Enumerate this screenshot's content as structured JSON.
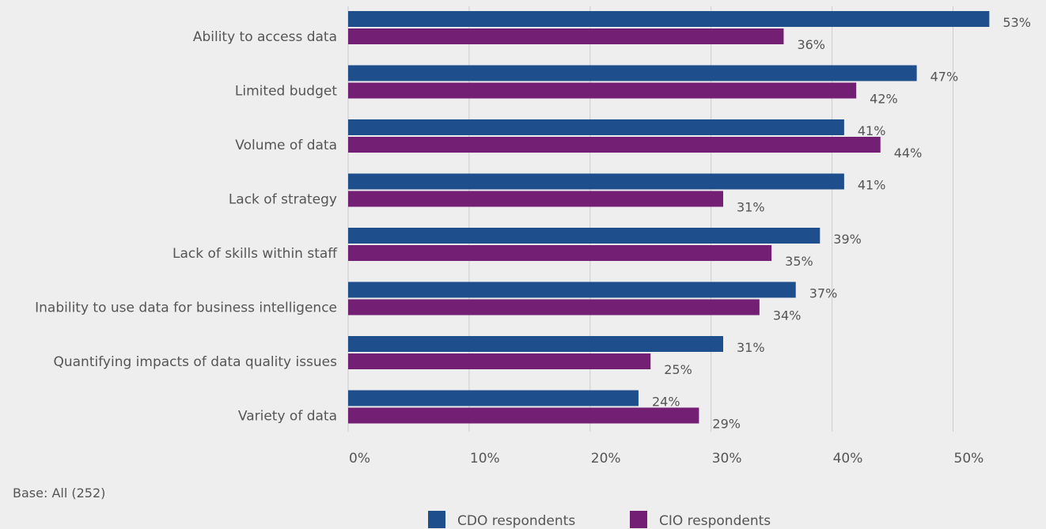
{
  "chart_data": {
    "type": "bar",
    "orientation": "horizontal",
    "categories": [
      "Ability to access data",
      "Limited budget",
      "Volume of data",
      "Lack of strategy",
      "Lack of skills within staff",
      "Inability to use data for business intelligence",
      "Quantifying impacts of data quality issues",
      "Variety of data"
    ],
    "series": [
      {
        "name": "CDO respondents",
        "color": "#1f4e8c",
        "values": [
          53,
          47,
          41,
          41,
          39,
          37,
          31,
          24
        ]
      },
      {
        "name": "CIO respondents",
        "color": "#731f73",
        "values": [
          36,
          42,
          44,
          31,
          35,
          34,
          25,
          29
        ]
      }
    ],
    "xlim": [
      0,
      55
    ],
    "x_ticks": [
      0,
      10,
      20,
      30,
      40,
      50
    ],
    "x_tick_labels": [
      "0%",
      "10%",
      "20%",
      "30%",
      "40%",
      "50%"
    ],
    "value_suffix": "%",
    "grid": true,
    "legend_position": "bottom-center"
  },
  "note": "Base: All (252)"
}
